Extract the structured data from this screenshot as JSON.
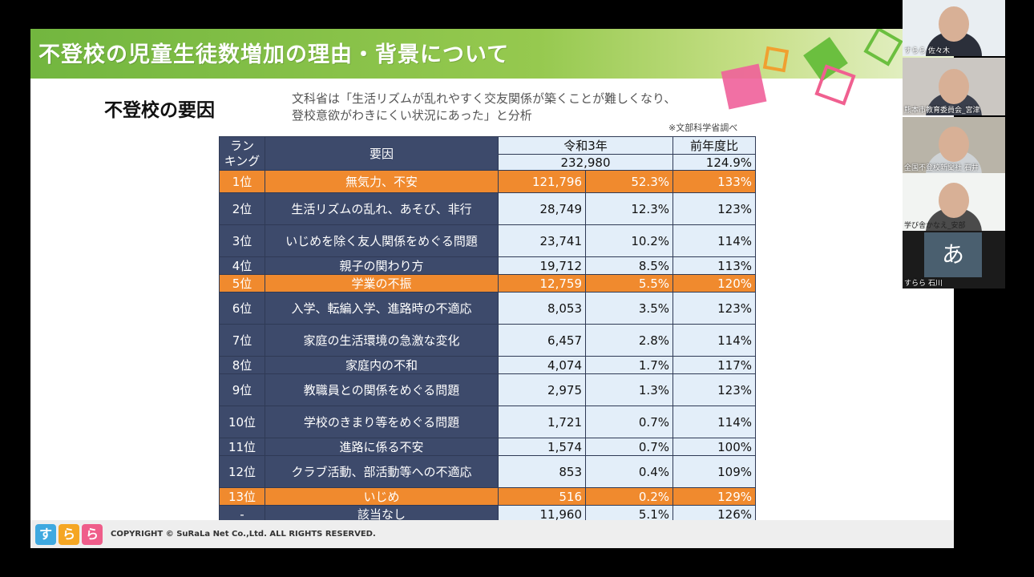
{
  "slide": {
    "title": "不登校の児童生徒数増加の理由・背景について",
    "subtitle": "不登校の要因",
    "note_line1": "文科省は「生活リズムが乱れやすく交友関係が築くことが難しくなり、",
    "note_line2": "登校意欲がわきにくい状況にあった」と分析",
    "source": "※文部科学省調べ",
    "table": {
      "header": {
        "rank_l1": "ラン",
        "rank_l2": "キング",
        "factor": "要因",
        "year": "令和3年",
        "year_total": "232,980",
        "yoy": "前年度比",
        "yoy_total": "124.9%"
      },
      "rows": [
        {
          "rank": "1位",
          "factor": "無気力、不安",
          "count": "121,796",
          "pct": "52.3%",
          "yoy": "133%",
          "highlight": true
        },
        {
          "rank": "2位",
          "factor": "生活リズムの乱れ、あそび、非行",
          "count": "28,749",
          "pct": "12.3%",
          "yoy": "123%",
          "highlight": false
        },
        {
          "rank": "3位",
          "factor": "いじめを除く友人関係をめぐる問題",
          "count": "23,741",
          "pct": "10.2%",
          "yoy": "114%",
          "highlight": false
        },
        {
          "rank": "4位",
          "factor": "親子の関わり方",
          "count": "19,712",
          "pct": "8.5%",
          "yoy": "113%",
          "highlight": false
        },
        {
          "rank": "5位",
          "factor": "学業の不振",
          "count": "12,759",
          "pct": "5.5%",
          "yoy": "120%",
          "highlight": true
        },
        {
          "rank": "6位",
          "factor": "入学、転編入学、進路時の不適応",
          "count": "8,053",
          "pct": "3.5%",
          "yoy": "123%",
          "highlight": false
        },
        {
          "rank": "7位",
          "factor": "家庭の生活環境の急激な変化",
          "count": "6,457",
          "pct": "2.8%",
          "yoy": "114%",
          "highlight": false
        },
        {
          "rank": "8位",
          "factor": "家庭内の不和",
          "count": "4,074",
          "pct": "1.7%",
          "yoy": "117%",
          "highlight": false
        },
        {
          "rank": "9位",
          "factor": "教職員との関係をめぐる問題",
          "count": "2,975",
          "pct": "1.3%",
          "yoy": "123%",
          "highlight": false
        },
        {
          "rank": "10位",
          "factor": "学校のきまり等をめぐる問題",
          "count": "1,721",
          "pct": "0.7%",
          "yoy": "114%",
          "highlight": false
        },
        {
          "rank": "11位",
          "factor": "進路に係る不安",
          "count": "1,574",
          "pct": "0.7%",
          "yoy": "100%",
          "highlight": false
        },
        {
          "rank": "12位",
          "factor": "クラブ活動、部活動等への不適応",
          "count": "853",
          "pct": "0.4%",
          "yoy": "109%",
          "highlight": false
        },
        {
          "rank": "13位",
          "factor": "いじめ",
          "count": "516",
          "pct": "0.2%",
          "yoy": "129%",
          "highlight": true
        },
        {
          "rank": "-",
          "factor": "該当なし",
          "count": "11,960",
          "pct": "5.1%",
          "yoy": "126%",
          "highlight": false
        }
      ]
    },
    "logo_chars": [
      "す",
      "ら",
      "ら"
    ],
    "copyright": "COPYRIGHT © SuRaLa Net Co.,Ltd. ALL RIGHTS RESERVED."
  },
  "participants": [
    {
      "name": "すらら 佐々木"
    },
    {
      "name": "熊本市教育委員会_宮津"
    },
    {
      "name": "全国不登校新聞社 石井"
    },
    {
      "name": "学び舎かなえ_安部"
    },
    {
      "name": "すらら 石川",
      "avatar_char": "あ"
    }
  ],
  "colors": {
    "title_green": "#72b63f",
    "table_navy": "#3d4a6b",
    "highlight_orange": "#f08a2e",
    "cell_blue": "#e3eef9"
  }
}
